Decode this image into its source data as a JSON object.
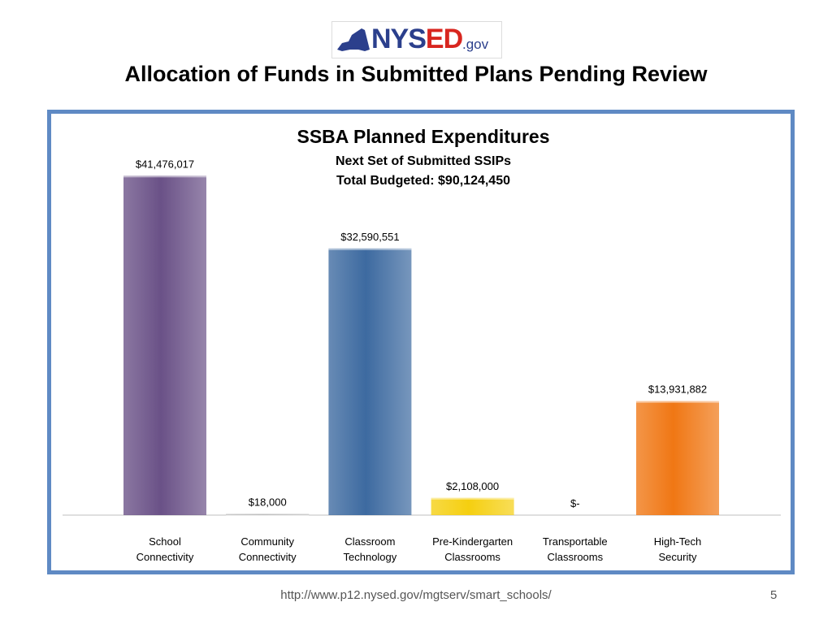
{
  "logo": {
    "text_ny": "NYS",
    "text_ed": "ED",
    "text_gov": ".gov"
  },
  "slide_title": "Allocation of Funds in Submitted Plans Pending Review",
  "footer": {
    "url": "http://www.p12.nysed.gov/mgtserv/smart_schools/",
    "page_number": "5"
  },
  "chart_data": {
    "type": "bar",
    "title": "SSBA Planned Expenditures",
    "subtitle_lines": [
      "Next Set of Submitted SSIPs",
      "Total Budgeted: $90,124,450"
    ],
    "categories": [
      [
        "School",
        "Connectivity"
      ],
      [
        "Community",
        "Connectivity"
      ],
      [
        "Classroom",
        "Technology"
      ],
      [
        "Pre-Kindergarten",
        "Classrooms"
      ],
      [
        "Transportable",
        "Classrooms"
      ],
      [
        "High-Tech",
        "Security"
      ]
    ],
    "values": [
      41476017,
      18000,
      32590551,
      2108000,
      0,
      13931882
    ],
    "data_labels": [
      "$41,476,017",
      "$18,000",
      "$32,590,551",
      "$2,108,000",
      "$-",
      "$13,931,882"
    ],
    "colors": [
      "#6a5187",
      "#7f7f7f",
      "#3d6aa0",
      "#f5cf10",
      "#f2a000",
      "#f07714"
    ],
    "ylim": [
      0,
      42000000
    ],
    "grid": false,
    "legend": "none"
  }
}
